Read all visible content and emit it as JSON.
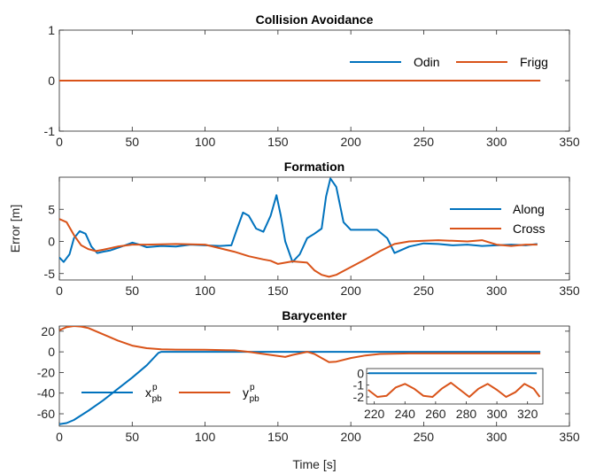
{
  "chart_data": [
    {
      "type": "line",
      "title": "Collision Avoidance",
      "xlabel": "",
      "ylabel": "",
      "xlim": [
        0,
        350
      ],
      "ylim": [
        -1,
        1
      ],
      "xticks": [
        "0",
        "50",
        "100",
        "150",
        "200",
        "250",
        "300",
        "350"
      ],
      "yticks": [
        "-1",
        "0",
        "1"
      ],
      "legend_position": "top-right",
      "series": [
        {
          "name": "Odin",
          "color": "#0072BD",
          "x": [
            0,
            330
          ],
          "y": [
            0,
            0
          ]
        },
        {
          "name": "Frigg",
          "color": "#D95319",
          "x": [
            0,
            330
          ],
          "y": [
            0,
            0
          ]
        }
      ]
    },
    {
      "type": "line",
      "title": "Formation",
      "xlabel": "",
      "ylabel": "Error [m]",
      "xlim": [
        0,
        350
      ],
      "ylim": [
        -6,
        10
      ],
      "xticks": [
        "0",
        "50",
        "100",
        "150",
        "200",
        "250",
        "300",
        "350"
      ],
      "yticks": [
        "-5",
        "0",
        "5"
      ],
      "legend_position": "right",
      "series": [
        {
          "name": "Along",
          "color": "#0072BD",
          "x": [
            0,
            3,
            7,
            10,
            14,
            18,
            22,
            26,
            30,
            35,
            40,
            45,
            50,
            55,
            60,
            70,
            80,
            90,
            100,
            110,
            118,
            122,
            126,
            130,
            135,
            140,
            145,
            149,
            152,
            155,
            160,
            165,
            170,
            175,
            180,
            183,
            186,
            190,
            195,
            200,
            210,
            218,
            225,
            230,
            240,
            250,
            260,
            270,
            280,
            290,
            300,
            310,
            320,
            328
          ],
          "y": [
            -2.5,
            -3.2,
            -2.0,
            0.5,
            1.6,
            1.2,
            -0.8,
            -1.8,
            -1.6,
            -1.4,
            -1.0,
            -0.6,
            -0.2,
            -0.5,
            -0.9,
            -0.7,
            -0.8,
            -0.5,
            -0.6,
            -0.7,
            -0.6,
            2.0,
            4.5,
            4.0,
            2.0,
            1.5,
            4.0,
            7.2,
            4.0,
            0.0,
            -3.2,
            -2.0,
            0.5,
            1.2,
            2.0,
            7.0,
            9.8,
            8.5,
            3.0,
            1.8,
            1.8,
            1.8,
            0.5,
            -1.8,
            -0.8,
            -0.3,
            -0.4,
            -0.6,
            -0.5,
            -0.7,
            -0.6,
            -0.5,
            -0.6,
            -0.4
          ]
        },
        {
          "name": "Cross",
          "color": "#D95319",
          "x": [
            0,
            5,
            10,
            15,
            20,
            25,
            30,
            40,
            50,
            60,
            80,
            100,
            120,
            130,
            140,
            145,
            150,
            160,
            170,
            175,
            180,
            185,
            190,
            200,
            210,
            220,
            230,
            240,
            250,
            260,
            270,
            280,
            290,
            300,
            310,
            320,
            328
          ],
          "y": [
            3.5,
            3.0,
            1.0,
            -0.6,
            -1.2,
            -1.5,
            -1.3,
            -0.8,
            -0.5,
            -0.5,
            -0.4,
            -0.5,
            -1.6,
            -2.3,
            -2.8,
            -3.0,
            -3.5,
            -3.1,
            -3.3,
            -4.5,
            -5.2,
            -5.5,
            -5.2,
            -4.0,
            -2.8,
            -1.5,
            -0.4,
            0.0,
            0.1,
            0.2,
            0.1,
            0.0,
            0.2,
            -0.5,
            -0.7,
            -0.5,
            -0.5
          ]
        }
      ]
    },
    {
      "type": "line",
      "title": "Barycenter",
      "xlabel": "Time [s]",
      "ylabel": "",
      "xlim": [
        0,
        350
      ],
      "ylim": [
        -72,
        25
      ],
      "xticks": [
        "0",
        "50",
        "100",
        "150",
        "200",
        "250",
        "300",
        "350"
      ],
      "yticks": [
        "20",
        "0",
        "-20",
        "-40",
        "-60"
      ],
      "legend_position": "bottom-left",
      "series": [
        {
          "name": "x_pb^p",
          "color": "#0072BD",
          "x": [
            0,
            5,
            10,
            20,
            30,
            40,
            50,
            60,
            68,
            70,
            100,
            150,
            200,
            250,
            300,
            330
          ],
          "y": [
            -70,
            -69,
            -66,
            -57,
            -47,
            -36,
            -25,
            -13,
            -1,
            0,
            0,
            0,
            0,
            0,
            0,
            0
          ]
        },
        {
          "name": "y_pb^p",
          "color": "#D95319",
          "x": [
            0,
            5,
            10,
            15,
            20,
            30,
            40,
            50,
            60,
            70,
            80,
            100,
            120,
            130,
            140,
            150,
            155,
            160,
            170,
            175,
            180,
            185,
            190,
            200,
            210,
            220,
            240,
            260,
            280,
            300,
            320,
            330
          ],
          "y": [
            21,
            24,
            25,
            24.5,
            23,
            17,
            11,
            6,
            3.5,
            2.5,
            2.2,
            2.0,
            1.5,
            0,
            -2,
            -4,
            -5,
            -3,
            0,
            -2,
            -6,
            -10,
            -9.5,
            -6,
            -3.5,
            -2,
            -1.5,
            -1.5,
            -1.5,
            -1.5,
            -1.5,
            -1.5
          ]
        }
      ],
      "inset": {
        "xlim": [
          215,
          330
        ],
        "ylim": [
          -2.6,
          0.4
        ],
        "xticks": [
          "220",
          "240",
          "260",
          "280",
          "300",
          "320"
        ],
        "yticks": [
          "0",
          "-1",
          "-2"
        ],
        "series": [
          {
            "color": "#0072BD",
            "x": [
              216,
              226,
              236,
              246,
              256,
              266,
              276,
              286,
              296,
              306,
              316,
              326
            ],
            "y": [
              0,
              0,
              0,
              0,
              0,
              0,
              0,
              0,
              0,
              0,
              0,
              0
            ]
          },
          {
            "color": "#D95319",
            "x": [
              216,
              222,
              228,
              234,
              240,
              246,
              252,
              258,
              264,
              270,
              276,
              282,
              288,
              294,
              300,
              306,
              312,
              318,
              324,
              328
            ],
            "y": [
              -1.4,
              -2.0,
              -1.9,
              -1.2,
              -0.9,
              -1.3,
              -1.9,
              -2.0,
              -1.3,
              -0.8,
              -1.4,
              -2.0,
              -1.3,
              -0.9,
              -1.4,
              -2.0,
              -1.6,
              -0.9,
              -1.3,
              -2.0
            ]
          }
        ]
      }
    }
  ]
}
